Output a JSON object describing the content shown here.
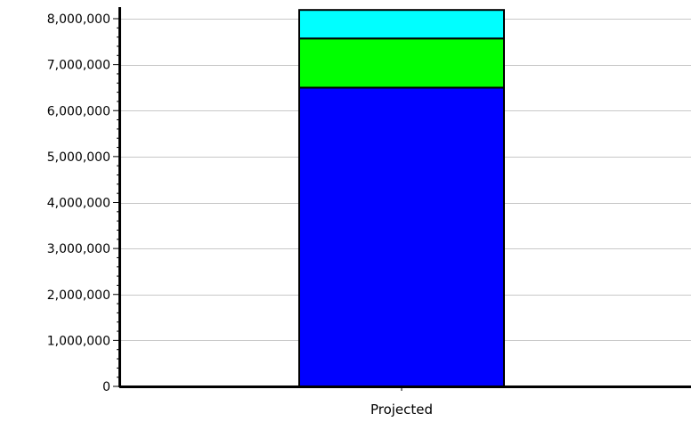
{
  "chart_data": {
    "type": "bar",
    "stacked": true,
    "categories": [
      "Projected"
    ],
    "series": [
      {
        "values": [
          6500000
        ],
        "color": "#0000ff"
      },
      {
        "values": [
          1070000
        ],
        "color": "#00ff00"
      },
      {
        "values": [
          620000
        ],
        "color": "#00ffff"
      }
    ],
    "ylim": [
      0,
      8000000
    ],
    "yticks": [
      0,
      1000000,
      2000000,
      3000000,
      4000000,
      5000000,
      6000000,
      7000000,
      8000000
    ],
    "ytick_labels": [
      "0",
      "1,000,000",
      "2,000,000",
      "3,000,000",
      "4,000,000",
      "5,000,000",
      "6,000,000",
      "7,000,000",
      "8,000,000"
    ],
    "title": "",
    "xlabel": "",
    "ylabel": "",
    "grid": true,
    "legend": false
  }
}
